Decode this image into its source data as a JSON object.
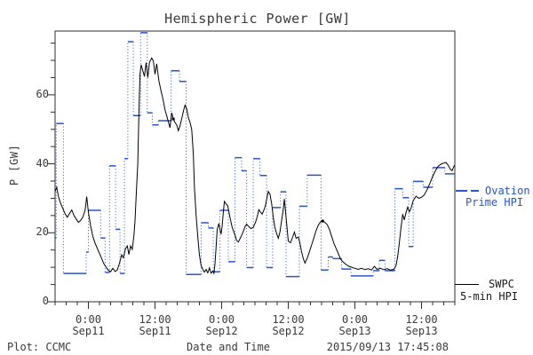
{
  "chart_data": {
    "type": "line",
    "title": "Hemispheric Power [GW]",
    "xlabel": "Date and Time",
    "ylabel": "P [GW]",
    "x_unit": "hours after 2015/09/10 18:00",
    "xlim_hours": [
      0,
      72
    ],
    "ylim": [
      0,
      78.5
    ],
    "grid": false,
    "legend_position": "right-outside",
    "yticks": [
      {
        "v": 0,
        "label": "0"
      },
      {
        "v": 20,
        "label": "20"
      },
      {
        "v": 40,
        "label": "40"
      },
      {
        "v": 60,
        "label": "60"
      }
    ],
    "y_minor_step": 5,
    "x_minor_step_hours": 2,
    "xticks": [
      {
        "t": 6,
        "time": "0:00",
        "date": "Sep11"
      },
      {
        "t": 18,
        "time": "12:00",
        "date": "Sep11"
      },
      {
        "t": 30,
        "time": "0:00",
        "date": "Sep12"
      },
      {
        "t": 42,
        "time": "12:00",
        "date": "Sep12"
      },
      {
        "t": 54,
        "time": "0:00",
        "date": "Sep13"
      },
      {
        "t": 66,
        "time": "12:00",
        "date": "Sep13"
      }
    ],
    "markers": [
      [
        21.3,
        53
      ],
      [
        48.2,
        23.4
      ]
    ],
    "series": [
      {
        "name": "SWPC 5-min HPI",
        "color": "#000000",
        "line": "solid",
        "points": [
          [
            0,
            32
          ],
          [
            0.3,
            33.2
          ],
          [
            0.6,
            30.5
          ],
          [
            1,
            28.5
          ],
          [
            1.4,
            27
          ],
          [
            1.8,
            25.5
          ],
          [
            2.2,
            24.5
          ],
          [
            2.6,
            25.6
          ],
          [
            3,
            26.6
          ],
          [
            3.4,
            25
          ],
          [
            3.8,
            24
          ],
          [
            4.2,
            23
          ],
          [
            4.6,
            23.6
          ],
          [
            5,
            24.6
          ],
          [
            5.4,
            26.5
          ],
          [
            5.7,
            30.5
          ],
          [
            6,
            26
          ],
          [
            6.4,
            22
          ],
          [
            6.8,
            19
          ],
          [
            7.2,
            17
          ],
          [
            7.6,
            15.5
          ],
          [
            8,
            14
          ],
          [
            8.4,
            12.5
          ],
          [
            8.8,
            11
          ],
          [
            9.2,
            10
          ],
          [
            9.6,
            9.1
          ],
          [
            10,
            8.7
          ],
          [
            10.4,
            9.7
          ],
          [
            10.8,
            8.8
          ],
          [
            11.2,
            9.2
          ],
          [
            11.6,
            11.2
          ],
          [
            12,
            13.6
          ],
          [
            12.3,
            12.8
          ],
          [
            12.7,
            15.5
          ],
          [
            13,
            16.2
          ],
          [
            13.3,
            13.7
          ],
          [
            13.6,
            16.2
          ],
          [
            13.9,
            15.2
          ],
          [
            14.2,
            19.3
          ],
          [
            14.4,
            23.5
          ],
          [
            14.6,
            30.7
          ],
          [
            14.9,
            40
          ],
          [
            15.1,
            55
          ],
          [
            15.3,
            66
          ],
          [
            15.5,
            68.7
          ],
          [
            15.8,
            67
          ],
          [
            16.1,
            65.3
          ],
          [
            16.4,
            69.4
          ],
          [
            16.7,
            65
          ],
          [
            17,
            69.5
          ],
          [
            17.4,
            70.7
          ],
          [
            17.7,
            69.8
          ],
          [
            18,
            66
          ],
          [
            18.3,
            69
          ],
          [
            18.7,
            64
          ],
          [
            19.1,
            61
          ],
          [
            19.4,
            59
          ],
          [
            19.8,
            55.6
          ],
          [
            20.1,
            54
          ],
          [
            20.4,
            52.2
          ],
          [
            20.7,
            50.5
          ],
          [
            21,
            54.8
          ],
          [
            21.3,
            53
          ],
          [
            21.6,
            52
          ],
          [
            21.9,
            51.3
          ],
          [
            22.2,
            49.6
          ],
          [
            22.5,
            51
          ],
          [
            22.8,
            53
          ],
          [
            23.1,
            55.2
          ],
          [
            23.4,
            57
          ],
          [
            23.7,
            56
          ],
          [
            24,
            53.5
          ],
          [
            24.3,
            52
          ],
          [
            24.6,
            50
          ],
          [
            24.9,
            43
          ],
          [
            25.1,
            33
          ],
          [
            25.4,
            25
          ],
          [
            25.7,
            19
          ],
          [
            26,
            13.5
          ],
          [
            26.3,
            10.5
          ],
          [
            26.6,
            9.4
          ],
          [
            26.9,
            8.6
          ],
          [
            27.2,
            9.4
          ],
          [
            27.5,
            8.4
          ],
          [
            27.8,
            9.8
          ],
          [
            28.1,
            8.3
          ],
          [
            28.4,
            8.9
          ],
          [
            28.6,
            8.2
          ],
          [
            28.8,
            11
          ],
          [
            29,
            16
          ],
          [
            29.2,
            21
          ],
          [
            29.5,
            22.7
          ],
          [
            29.7,
            21
          ],
          [
            29.9,
            19.6
          ],
          [
            30.1,
            22
          ],
          [
            30.3,
            26
          ],
          [
            30.5,
            29.1
          ],
          [
            30.8,
            28.4
          ],
          [
            31.1,
            27.8
          ],
          [
            31.5,
            24.5
          ],
          [
            31.9,
            21.5
          ],
          [
            32.3,
            19.8
          ],
          [
            32.7,
            17.8
          ],
          [
            33,
            17.3
          ],
          [
            33.4,
            18.6
          ],
          [
            33.8,
            20
          ],
          [
            34.2,
            21.8
          ],
          [
            34.5,
            22.5
          ],
          [
            34.9,
            21.8
          ],
          [
            35.3,
            21.2
          ],
          [
            35.7,
            21.6
          ],
          [
            36.1,
            23
          ],
          [
            36.4,
            24.6
          ],
          [
            36.7,
            26.7
          ],
          [
            37,
            26
          ],
          [
            37.3,
            25.4
          ],
          [
            37.6,
            26.5
          ],
          [
            37.9,
            28
          ],
          [
            38.2,
            30.5
          ],
          [
            38.4,
            32
          ],
          [
            38.7,
            31.2
          ],
          [
            39,
            28.5
          ],
          [
            39.3,
            24.5
          ],
          [
            39.6,
            21.5
          ],
          [
            39.9,
            19.8
          ],
          [
            40.2,
            18.4
          ],
          [
            40.5,
            20.2
          ],
          [
            40.8,
            23.5
          ],
          [
            41.1,
            26.8
          ],
          [
            41.3,
            29.8
          ],
          [
            41.6,
            24.6
          ],
          [
            42,
            17.6
          ],
          [
            42.4,
            17.1
          ],
          [
            42.8,
            18.8
          ],
          [
            43.1,
            20.2
          ],
          [
            43.4,
            18.4
          ],
          [
            43.8,
            18.8
          ],
          [
            44.1,
            17
          ],
          [
            44.4,
            14.5
          ],
          [
            44.7,
            12.5
          ],
          [
            45,
            11.2
          ],
          [
            45.4,
            12.6
          ],
          [
            45.8,
            14.5
          ],
          [
            46.2,
            16.5
          ],
          [
            46.6,
            18.5
          ],
          [
            47,
            20.6
          ],
          [
            47.4,
            22.2
          ],
          [
            47.8,
            23.2
          ],
          [
            48.2,
            23.4
          ],
          [
            48.6,
            23
          ],
          [
            49,
            22.4
          ],
          [
            49.4,
            21
          ],
          [
            49.8,
            19
          ],
          [
            50.2,
            17
          ],
          [
            50.6,
            15.5
          ],
          [
            51,
            14
          ],
          [
            51.4,
            12.4
          ],
          [
            51.9,
            11.5
          ],
          [
            52.4,
            10.8
          ],
          [
            52.9,
            10.3
          ],
          [
            53.4,
            10
          ],
          [
            54,
            9.7
          ],
          [
            54.6,
            9.4
          ],
          [
            55.2,
            9.7
          ],
          [
            55.8,
            9.3
          ],
          [
            56.4,
            9.6
          ],
          [
            57,
            9.2
          ],
          [
            57.5,
            10.3
          ],
          [
            58,
            9.4
          ],
          [
            58.6,
            9.7
          ],
          [
            59.2,
            9.3
          ],
          [
            59.8,
            9.6
          ],
          [
            60.4,
            9.2
          ],
          [
            61,
            9.4
          ],
          [
            61.4,
            10.5
          ],
          [
            61.7,
            13
          ],
          [
            62,
            17
          ],
          [
            62.3,
            21.5
          ],
          [
            62.6,
            25.4
          ],
          [
            62.9,
            23.7
          ],
          [
            63.2,
            25.8
          ],
          [
            63.5,
            27.4
          ],
          [
            63.8,
            26.1
          ],
          [
            64.1,
            27
          ],
          [
            64.5,
            29.3
          ],
          [
            65,
            30.6
          ],
          [
            65.5,
            30
          ],
          [
            66,
            30.3
          ],
          [
            66.5,
            31
          ],
          [
            67,
            32.5
          ],
          [
            67.5,
            34.3
          ],
          [
            68,
            36.3
          ],
          [
            68.5,
            38
          ],
          [
            69,
            39.3
          ],
          [
            69.5,
            39.9
          ],
          [
            70,
            40.2
          ],
          [
            70.4,
            40.4
          ],
          [
            70.8,
            39.6
          ],
          [
            71.2,
            38.4
          ],
          [
            71.5,
            38
          ],
          [
            71.8,
            39.2
          ],
          [
            72,
            39.6
          ]
        ]
      },
      {
        "name": "Ovation Prime HPI",
        "color": "#2a55c8",
        "line": "steps, solid levels with dotted risers",
        "steps": [
          [
            0,
            0.2,
            18.5
          ],
          [
            0.2,
            1.5,
            51.7
          ],
          [
            1.5,
            5.6,
            8.2
          ],
          [
            5.6,
            6.0,
            14.4
          ],
          [
            6.0,
            8.2,
            26.5
          ],
          [
            8.2,
            9.0,
            18.5
          ],
          [
            9.0,
            9.8,
            8.5
          ],
          [
            9.8,
            10.9,
            39.4
          ],
          [
            10.9,
            11.7,
            21.0
          ],
          [
            11.7,
            12.5,
            8.2
          ],
          [
            12.5,
            13.1,
            41.5
          ],
          [
            13.1,
            14.1,
            75.4
          ],
          [
            14.1,
            15.4,
            54.0
          ],
          [
            15.4,
            16.6,
            78.0
          ],
          [
            16.6,
            17.5,
            54.8
          ],
          [
            17.5,
            18.6,
            51.3
          ],
          [
            18.6,
            20.9,
            52.5
          ],
          [
            20.9,
            22.4,
            67.0
          ],
          [
            22.4,
            23.6,
            63.9
          ],
          [
            23.6,
            26.3,
            7.9
          ],
          [
            26.3,
            27.6,
            22.9
          ],
          [
            27.6,
            28.5,
            21.4
          ],
          [
            28.5,
            29.7,
            8.7
          ],
          [
            29.7,
            31.2,
            26.5
          ],
          [
            31.2,
            32.4,
            11.6
          ],
          [
            32.4,
            33.6,
            41.8
          ],
          [
            33.6,
            34.5,
            38.0
          ],
          [
            34.5,
            35.7,
            9.9
          ],
          [
            35.7,
            36.9,
            41.5
          ],
          [
            36.9,
            38.1,
            36.6
          ],
          [
            38.1,
            39.2,
            9.9
          ],
          [
            39.2,
            40.6,
            27.3
          ],
          [
            40.6,
            41.6,
            31.9
          ],
          [
            41.6,
            44.0,
            7.3
          ],
          [
            44.0,
            45.4,
            27.7
          ],
          [
            45.4,
            47.9,
            36.7
          ],
          [
            47.9,
            49.2,
            9.2
          ],
          [
            49.2,
            50.0,
            13.0
          ],
          [
            50.0,
            51.6,
            12.5
          ],
          [
            51.6,
            53.3,
            9.5
          ],
          [
            53.3,
            57.3,
            7.5
          ],
          [
            57.3,
            58.4,
            9.0
          ],
          [
            58.4,
            59.4,
            12.0
          ],
          [
            59.4,
            61.2,
            9.0
          ],
          [
            61.2,
            62.6,
            32.8
          ],
          [
            62.6,
            63.7,
            30.2
          ],
          [
            63.7,
            64.5,
            16.0
          ],
          [
            64.5,
            66.3,
            34.9
          ],
          [
            66.3,
            68.0,
            33.2
          ],
          [
            68.0,
            70.2,
            38.9
          ],
          [
            70.2,
            72,
            37.1
          ]
        ]
      }
    ]
  },
  "legend": {
    "ovation_line1": "Ovation",
    "ovation_line2": "Prime HPI",
    "ovation_color": "#2a55c8",
    "swpc_line1": "SWPC",
    "swpc_line2": "5-min HPI",
    "swpc_color": "#000000"
  },
  "footer": {
    "credit": "Plot: CCMC",
    "timestamp": "2015/09/13 17:45:08"
  }
}
